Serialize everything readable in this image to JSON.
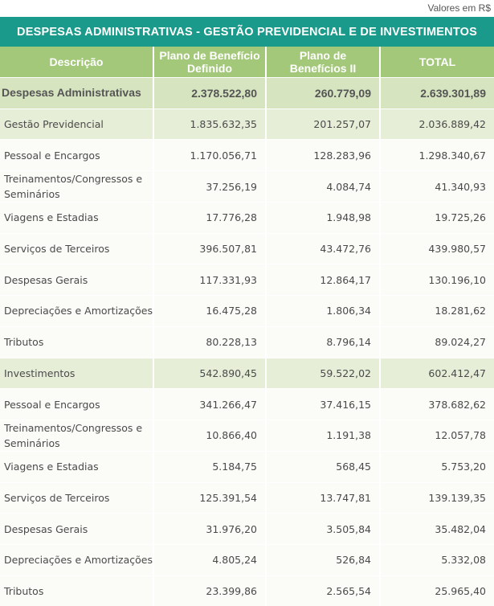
{
  "units_label": "Valores em R$",
  "title": "DESPESAS ADMINISTRATIVAS - GESTÃO PREVIDENCIAL E DE INVESTIMENTOS",
  "headers": [
    "Descrição",
    "Plano de Benefício Definido",
    "Plano de Benefícios II",
    "TOTAL"
  ],
  "rows": [
    {
      "label": "Despesas Administrativas",
      "bd": "2.378.522,80",
      "b2": "260.779,09",
      "total": "2.639.301,89"
    },
    {
      "label": "Gestão Previdencial",
      "bd": "1.835.632,35",
      "b2": "201.257,07",
      "total": "2.036.889,42"
    },
    {
      "label": "Pessoal e Encargos",
      "bd": "1.170.056,71",
      "b2": "128.283,96",
      "total": "1.298.340,67"
    },
    {
      "label": "Treinamentos/Congressos e Seminários",
      "bd": "37.256,19",
      "b2": "4.084,74",
      "total": "41.340,93"
    },
    {
      "label": "Viagens e Estadias",
      "bd": "17.776,28",
      "b2": "1.948,98",
      "total": "19.725,26"
    },
    {
      "label": "Serviços de Terceiros",
      "bd": "396.507,81",
      "b2": "43.472,76",
      "total": "439.980,57"
    },
    {
      "label": "Despesas Gerais",
      "bd": "117.331,93",
      "b2": "12.864,17",
      "total": "130.196,10"
    },
    {
      "label": "Depreciações e Amortizações",
      "bd": "16.475,28",
      "b2": "1.806,34",
      "total": "18.281,62"
    },
    {
      "label": "Tributos",
      "bd": "80.228,13",
      "b2": "8.796,14",
      "total": "89.024,27"
    },
    {
      "label": "Investimentos",
      "bd": "542.890,45",
      "b2": "59.522,02",
      "total": "602.412,47"
    },
    {
      "label": "Pessoal e Encargos",
      "bd": "341.266,47",
      "b2": "37.416,15",
      "total": "378.682,62"
    },
    {
      "label": "Treinamentos/Congressos e Seminários",
      "bd": "10.866,40",
      "b2": "1.191,38",
      "total": "12.057,78"
    },
    {
      "label": "Viagens e Estadias",
      "bd": "5.184,75",
      "b2": "568,45",
      "total": "5.753,20"
    },
    {
      "label": "Serviços de Terceiros",
      "bd": "125.391,54",
      "b2": "13.747,81",
      "total": "139.139,35"
    },
    {
      "label": "Despesas Gerais",
      "bd": "31.976,20",
      "b2": "3.505,84",
      "total": "35.482,04"
    },
    {
      "label": "Depreciações e Amortizações",
      "bd": "4.805,24",
      "b2": "526,84",
      "total": "5.332,08"
    },
    {
      "label": "Tributos",
      "bd": "23.399,86",
      "b2": "2.565,54",
      "total": "25.965,40"
    }
  ]
}
